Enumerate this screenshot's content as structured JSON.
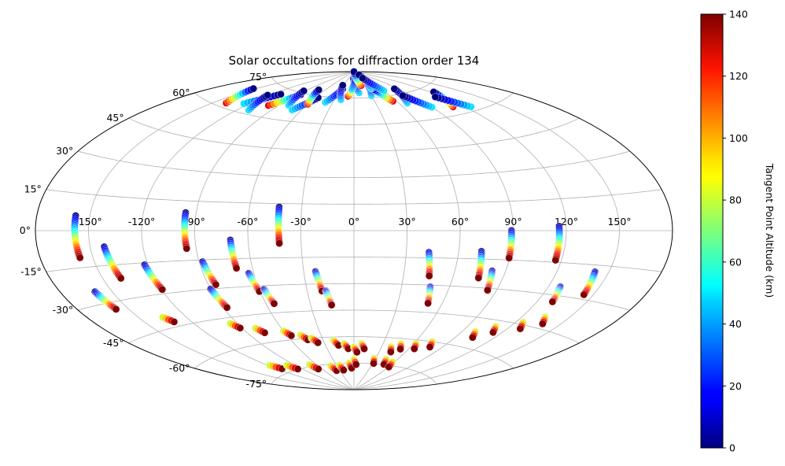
{
  "chart_data": {
    "type": "scatter",
    "projection": "aitoff",
    "title": "Solar occultations for diffraction order 134",
    "xlabel": "",
    "ylabel": "",
    "grid": true,
    "lon_ticks": [
      "-150°",
      "-120°",
      "-90°",
      "-60°",
      "-30°",
      "0°",
      "30°",
      "60°",
      "90°",
      "120°",
      "150°"
    ],
    "lat_ticks": [
      "-75°",
      "-60°",
      "-45°",
      "-30°",
      "-15°",
      "0°",
      "15°",
      "30°",
      "45°",
      "60°",
      "75°"
    ],
    "colorbar": {
      "label": "Tangent Point Altitude (km)",
      "colormap": "jet",
      "range": [
        0,
        140
      ],
      "ticks": [
        "0",
        "20",
        "40",
        "60",
        "80",
        "100",
        "120",
        "140"
      ]
    },
    "series": [
      {
        "lon": -158,
        "lat_top": 6,
        "lat_bottom": -11
      },
      {
        "lon": -96,
        "lat_top": 9,
        "lat_bottom": -9
      },
      {
        "lon": -43,
        "lat_top": 13,
        "lat_bottom": -7
      },
      {
        "lon": 89,
        "lat_top": 0,
        "lat_bottom": -14
      },
      {
        "lon": 116,
        "lat_top": 2,
        "lat_bottom": -14
      },
      {
        "lon": 43,
        "lat_top": -12,
        "lat_bottom": -25
      },
      {
        "lon": 73,
        "lat_top": -11,
        "lat_bottom": -25
      },
      {
        "lon": -142,
        "lat_top": -7,
        "lat_bottom": -21
      },
      {
        "lon": -122,
        "lat_top": -16,
        "lat_bottom": -28
      },
      {
        "lon": -88,
        "lat_top": -16,
        "lat_bottom": -28
      },
      {
        "lon": -70,
        "lat_top": -5,
        "lat_bottom": -20
      },
      {
        "lon": -63,
        "lat_top": -23,
        "lat_bottom": -33
      },
      {
        "lon": -23,
        "lat_top": -23,
        "lat_bottom": -34
      },
      {
        "lon": -18,
        "lat_top": -34,
        "lat_bottom": -42
      },
      {
        "lon": -160,
        "lat_top": -25,
        "lat_bottom": -33
      },
      {
        "lon": -90,
        "lat_top": -30,
        "lat_bottom": -40
      },
      {
        "lon": -57,
        "lat_top": -32,
        "lat_bottom": -40
      },
      {
        "lon": 48,
        "lat_top": -31,
        "lat_bottom": -40
      },
      {
        "lon": 82,
        "lat_top": -21,
        "lat_bottom": -31
      },
      {
        "lon": 127,
        "lat_top": -26,
        "lat_bottom": -33
      },
      {
        "lon": 142,
        "lat_top": -18,
        "lat_bottom": -28
      }
    ],
    "arctic_swarm": true,
    "antarctic_points": true
  }
}
